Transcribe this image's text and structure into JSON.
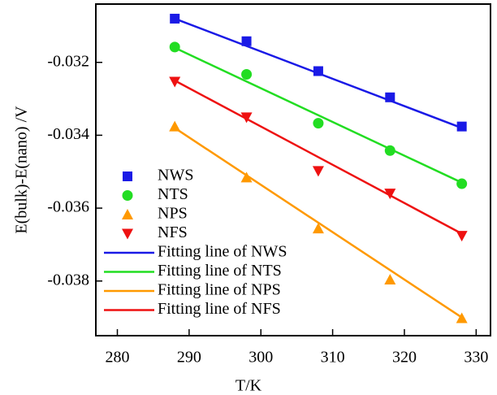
{
  "chart_data": {
    "type": "scatter",
    "xlabel": "T/K",
    "ylabel": "E(bulk)-E(nano) /V",
    "xlim": [
      277,
      332
    ],
    "xticks": [
      280,
      290,
      300,
      310,
      320,
      330
    ],
    "ylim": [
      -0.0395,
      -0.0304
    ],
    "yticks": [
      -0.032,
      -0.034,
      -0.036,
      -0.038
    ],
    "legend": "left",
    "series": [
      {
        "name": "NWS",
        "color": "#1a1ae6",
        "marker": "square",
        "x": [
          288,
          298,
          308,
          318,
          328
        ],
        "values": [
          -0.0308,
          -0.03142,
          -0.03224,
          -0.03296,
          -0.03376
        ]
      },
      {
        "name": "NTS",
        "color": "#22dd22",
        "marker": "circle",
        "x": [
          288,
          298,
          308,
          318,
          328
        ],
        "values": [
          -0.03158,
          -0.03233,
          -0.03367,
          -0.03442,
          -0.03533
        ]
      },
      {
        "name": "NPS",
        "color": "#ff9900",
        "marker": "triangle-up",
        "x": [
          288,
          298,
          308,
          318,
          328
        ],
        "values": [
          -0.03376,
          -0.03516,
          -0.03656,
          -0.03796,
          -0.03902
        ]
      },
      {
        "name": "NFS",
        "color": "#ee1111",
        "marker": "triangle-down",
        "x": [
          288,
          298,
          308,
          318,
          328
        ],
        "values": [
          -0.03253,
          -0.03351,
          -0.03498,
          -0.0356,
          -0.03676
        ]
      },
      {
        "name": "Fitting line of NWS",
        "color": "#1a1ae6",
        "marker": "line",
        "x": [
          288,
          328
        ],
        "values": [
          -0.0308,
          -0.0338
        ]
      },
      {
        "name": "Fitting line of NTS",
        "color": "#22dd22",
        "marker": "line",
        "x": [
          288,
          328
        ],
        "values": [
          -0.0316,
          -0.0353
        ]
      },
      {
        "name": "Fitting line of NPS",
        "color": "#ff9900",
        "marker": "line",
        "x": [
          288,
          328
        ],
        "values": [
          -0.0338,
          -0.039
        ]
      },
      {
        "name": "Fitting line of NFS",
        "color": "#ee1111",
        "marker": "line",
        "x": [
          288,
          328
        ],
        "values": [
          -0.0325,
          -0.0367
        ]
      }
    ]
  }
}
